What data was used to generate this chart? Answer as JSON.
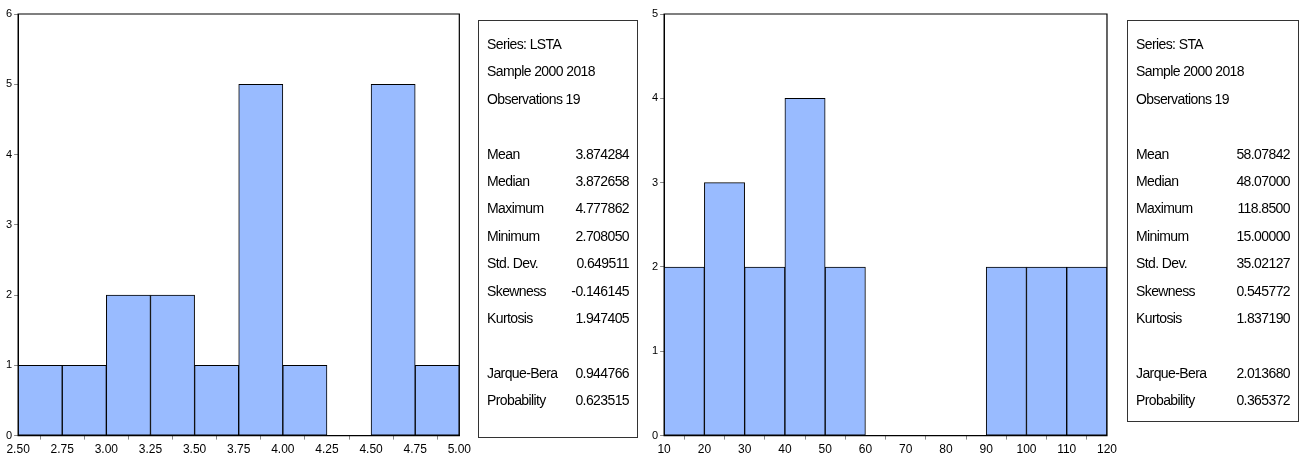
{
  "chart_data": [
    {
      "type": "histogram",
      "bins": [
        2.5,
        2.75,
        3.0,
        3.25,
        3.5,
        3.75,
        4.0,
        4.25,
        4.5,
        4.75,
        5.0
      ],
      "values": [
        1,
        1,
        2,
        2,
        1,
        5,
        1,
        0,
        5,
        1
      ],
      "color": "#99bbff",
      "xlim": [
        2.5,
        5.0
      ],
      "xticks": [
        {
          "value": 2.5,
          "label": "2.50"
        },
        {
          "value": 2.75,
          "label": "2.75"
        },
        {
          "value": 3.0,
          "label": "3.00"
        },
        {
          "value": 3.25,
          "label": "3.25"
        },
        {
          "value": 3.5,
          "label": "3.50"
        },
        {
          "value": 3.75,
          "label": "3.75"
        },
        {
          "value": 4.0,
          "label": "4.00"
        },
        {
          "value": 4.25,
          "label": "4.25"
        },
        {
          "value": 4.5,
          "label": "4.50"
        },
        {
          "value": 4.75,
          "label": "4.75"
        },
        {
          "value": 5.0,
          "label": "5.00"
        }
      ],
      "ylim": [
        0,
        6
      ],
      "yticks": [
        0,
        1,
        2,
        3,
        4,
        5,
        6
      ],
      "grid": false,
      "legend": false
    },
    {
      "type": "other",
      "title": "Series: LSTA",
      "subtitle": "Sample 2000 2018",
      "annotations": [
        "Observations 19",
        "Mean 3.874284",
        "Median 3.872658",
        "Maximum 4.777862",
        "Minimum 2.708050",
        "Std. Dev. 0.649511",
        "Skewness -0.146145",
        "Kurtosis 1.947405",
        "Jarque-Bera 0.944766",
        "Probability 0.623515"
      ]
    },
    {
      "type": "histogram",
      "bins": [
        10,
        20,
        30,
        40,
        50,
        60,
        70,
        80,
        90,
        100,
        110,
        120
      ],
      "values": [
        2,
        3,
        2,
        4,
        2,
        0,
        0,
        0,
        2,
        2,
        2
      ],
      "color": "#99bbff",
      "xlim": [
        10,
        120
      ],
      "xticks": [
        10,
        20,
        30,
        40,
        50,
        60,
        70,
        80,
        90,
        100,
        110,
        120
      ],
      "ylim": [
        0,
        5
      ],
      "yticks": [
        0,
        1,
        2,
        3,
        4,
        5
      ],
      "grid": false,
      "legend": false
    },
    {
      "type": "other",
      "title": "Series: STA",
      "subtitle": "Sample 2000 2018",
      "annotations": [
        "Observations 19",
        "Mean 58.07842",
        "Median 48.07000",
        "Maximum 118.8500",
        "Minimum 15.00000",
        "Std. Dev. 35.02127",
        "Skewness 0.545772",
        "Kurtosis 1.837190",
        "Jarque-Bera 2.013680",
        "Probability 0.365372"
      ]
    }
  ]
}
